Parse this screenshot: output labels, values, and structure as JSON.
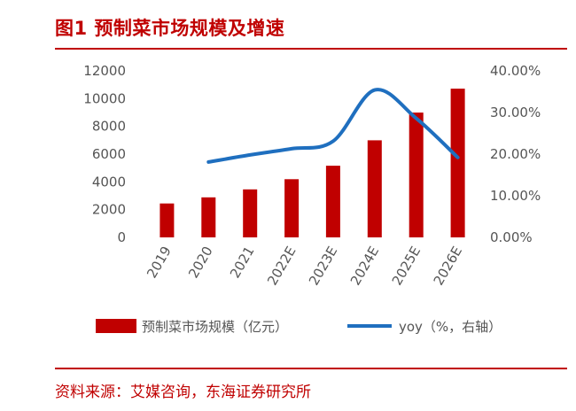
{
  "figure": {
    "title": "图1  预制菜市场规模及增速",
    "source": "资料来源：艾媒咨询，东海证券研究所"
  },
  "colors": {
    "accent": "#c00000",
    "bar": "#c00000",
    "line": "#1f6fbf"
  },
  "chart_data": {
    "type": "bar",
    "categories": [
      "2019",
      "2020",
      "2021",
      "2022E",
      "2023E",
      "2024E",
      "2025E",
      "2026E"
    ],
    "series": [
      {
        "name": "预制菜市场规模（亿元）",
        "type": "bar",
        "axis": "left",
        "values": [
          2445,
          2888,
          3459,
          4196,
          5165,
          6996,
          8995,
          10720
        ]
      },
      {
        "name": "yoy（%，右轴）",
        "type": "line",
        "axis": "right",
        "values": [
          null,
          18.1,
          19.8,
          21.3,
          23.1,
          35.4,
          28.6,
          19.2
        ]
      }
    ],
    "ylim": [
      0,
      12000
    ],
    "yticks": [
      "0",
      "2000",
      "4000",
      "6000",
      "8000",
      "10000",
      "12000"
    ],
    "y2lim": [
      0,
      40
    ],
    "y2ticks": [
      "0.00%",
      "10.00%",
      "20.00%",
      "30.00%",
      "40.00%"
    ],
    "legend": [
      "预制菜市场规模（亿元）",
      "yoy（%，右轴）"
    ],
    "legend_position": "bottom",
    "grid": false
  }
}
